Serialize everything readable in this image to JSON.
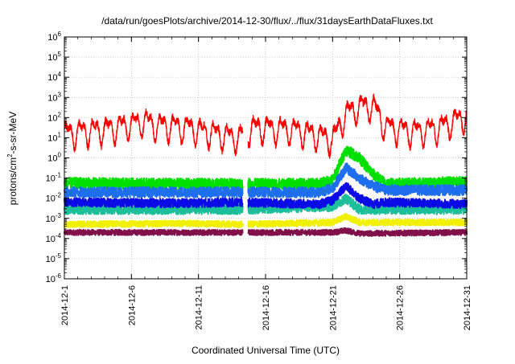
{
  "chart_data": {
    "type": "line",
    "title": "/data/run/goesPlots/archive/2014-12-30/flux/../flux/31daysEarthDataFluxes.txt",
    "xlabel": "Coordinated Universal Time (UTC)",
    "ylabel": {
      "prefix": "protons/cm",
      "superscript": "2",
      "suffix": "-s-sr-MeV"
    },
    "x_ticks": [
      "2014-12-1",
      "2014-12-6",
      "2014-12-11",
      "2014-12-16",
      "2014-12-21",
      "2014-12-26",
      "2014-12-31"
    ],
    "x_range": [
      "2014-12-1",
      "2014-12-31"
    ],
    "y_scale": "log",
    "y_range": [
      1e-06,
      1000000.0
    ],
    "y_ticks": [
      {
        "base": "10",
        "exp": "-6"
      },
      {
        "base": "10",
        "exp": "-5"
      },
      {
        "base": "10",
        "exp": "-4"
      },
      {
        "base": "10",
        "exp": "-3"
      },
      {
        "base": "10",
        "exp": "-2"
      },
      {
        "base": "10",
        "exp": "-1"
      },
      {
        "base": "10",
        "exp": "0"
      },
      {
        "base": "10",
        "exp": "1"
      },
      {
        "base": "10",
        "exp": "2"
      },
      {
        "base": "10",
        "exp": "3"
      },
      {
        "base": "10",
        "exp": "4"
      },
      {
        "base": "10",
        "exp": "5"
      },
      {
        "base": "10",
        "exp": "6"
      }
    ],
    "grid": true,
    "data_gap": [
      "2014-12-14.3",
      "2014-12-14.7"
    ],
    "series": [
      {
        "color": "#800f4a",
        "stroke_width": 2,
        "noise": 0.14,
        "x": [
          "2014-12-1",
          "2014-12-10",
          "2014-12-14",
          "2014-12-21",
          "2014-12-22",
          "2014-12-23",
          "2014-12-31"
        ],
        "log10": [
          -3.7,
          -3.7,
          -3.7,
          -3.7,
          -3.6,
          -3.75,
          -3.7
        ]
      },
      {
        "color": "#f0f000",
        "stroke_width": 2,
        "noise": 0.16,
        "x": [
          "2014-12-1",
          "2014-12-10",
          "2014-12-14",
          "2014-12-21",
          "2014-12-22",
          "2014-12-23",
          "2014-12-31"
        ],
        "log10": [
          -3.3,
          -3.25,
          -3.3,
          -3.2,
          -2.9,
          -3.2,
          -3.2
        ]
      },
      {
        "color": "#1cbf9a",
        "stroke_width": 2,
        "noise": 0.25,
        "x": [
          "2014-12-1",
          "2014-12-10",
          "2014-12-14",
          "2014-12-21",
          "2014-12-22",
          "2014-12-23",
          "2014-12-31"
        ],
        "log10": [
          -2.55,
          -2.55,
          -2.55,
          -2.4,
          -2.0,
          -2.55,
          -2.55
        ]
      },
      {
        "color": "#00e000",
        "stroke_width": 2,
        "noise": 0.28,
        "x": [
          "2014-12-1",
          "2014-12-10",
          "2014-12-14",
          "2014-12-20",
          "2014-12-21",
          "2014-12-22",
          "2014-12-23",
          "2014-12-24",
          "2014-12-25",
          "2014-12-31"
        ],
        "log10": [
          -1.25,
          -1.3,
          -1.3,
          -1.3,
          -1.1,
          0.4,
          0.0,
          -0.8,
          -1.3,
          -1.2
        ]
      },
      {
        "color": "#1e6ef0",
        "stroke_width": 2,
        "noise": 0.26,
        "x": [
          "2014-12-1",
          "2014-12-10",
          "2014-12-14",
          "2014-12-20",
          "2014-12-21",
          "2014-12-22",
          "2014-12-23",
          "2014-12-24",
          "2014-12-25",
          "2014-12-31"
        ],
        "log10": [
          -1.7,
          -1.7,
          -1.7,
          -1.7,
          -1.5,
          -0.5,
          -1.0,
          -1.4,
          -1.6,
          -1.6
        ]
      },
      {
        "color": "#0a0ae6",
        "stroke_width": 2,
        "noise": 0.22,
        "x": [
          "2014-12-1",
          "2014-12-10",
          "2014-12-14",
          "2014-12-20",
          "2014-12-21",
          "2014-12-22",
          "2014-12-23",
          "2014-12-24",
          "2014-12-25",
          "2014-12-31"
        ],
        "log10": [
          -2.2,
          -2.25,
          -2.2,
          -2.3,
          -2.1,
          -1.4,
          -2.0,
          -2.3,
          -2.2,
          -2.3
        ]
      },
      {
        "color": "#ff0000",
        "stroke_width": 1.3,
        "noise": 0.18,
        "periodic_amplitude": 1.0,
        "period_days": 1.0,
        "x": [
          "2014-12-1",
          "2014-12-4",
          "2014-12-7",
          "2014-12-8",
          "2014-12-10",
          "2014-12-13",
          "2014-12-14",
          "2014-12-15",
          "2014-12-18",
          "2014-12-20",
          "2014-12-21",
          "2014-12-22",
          "2014-12-23",
          "2014-12-24",
          "2014-12-25",
          "2014-12-27",
          "2014-12-29",
          "2014-12-31"
        ],
        "log10": [
          1.2,
          1.4,
          1.8,
          1.6,
          1.5,
          1.1,
          1.0,
          1.5,
          1.4,
          1.1,
          0.9,
          2.2,
          2.5,
          2.6,
          1.5,
          1.3,
          1.5,
          2.1
        ]
      }
    ]
  }
}
